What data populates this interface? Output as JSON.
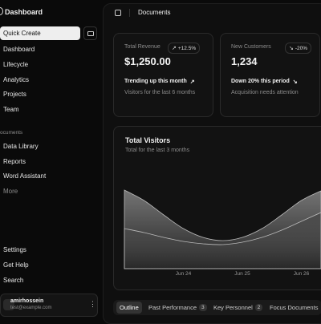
{
  "sidebar": {
    "title": "Dashboard",
    "quick_create": "Quick Create",
    "main_items": [
      "Dashboard",
      "Lifecycle",
      "Analytics",
      "Projects",
      "Team"
    ],
    "section_label": "ocuments",
    "doc_items": [
      "Data Library",
      "Reports",
      "Word Assistant",
      "More"
    ],
    "bottom_items": [
      "Settings",
      "Get Help",
      "Search"
    ],
    "user": {
      "name": "amirhossein",
      "email": "test@example.com"
    }
  },
  "header": {
    "title": "Documents"
  },
  "cards": [
    {
      "label": "Total Revenue",
      "badge": "+12.5%",
      "value": "$1,250.00",
      "trend": "Trending up this month",
      "note": "Visitors for the last 6 months"
    },
    {
      "label": "New Customers",
      "badge": "-20%",
      "value": "1,234",
      "trend": "Down 20% this period",
      "note": "Acquisition needs attention"
    }
  ],
  "visitors_chart": {
    "type": "area",
    "title": "Total Visitors",
    "subtitle": "Total for the last 3 months",
    "ylim": [
      0,
      100
    ],
    "xlim": [
      0,
      10
    ],
    "xticks": [
      {
        "value": 3,
        "label": "Jun 24"
      },
      {
        "value": 6,
        "label": "Jun 25"
      },
      {
        "value": 9,
        "label": "Jun 26"
      }
    ],
    "series": [
      {
        "color": "#7a7a7a",
        "values": [
          98,
          85,
          67,
          50,
          39,
          35,
          39,
          50,
          67,
          85,
          97
        ]
      },
      {
        "color": "#4a4a4a",
        "values": [
          50,
          45,
          39,
          34,
          31,
          30,
          33,
          39,
          48,
          59,
          70
        ]
      }
    ]
  },
  "tabs": {
    "items": [
      "Outline",
      "Past Performance",
      "Key Personnel",
      "Focus Documents"
    ],
    "counts": {
      "1": "3",
      "2": "2"
    }
  }
}
